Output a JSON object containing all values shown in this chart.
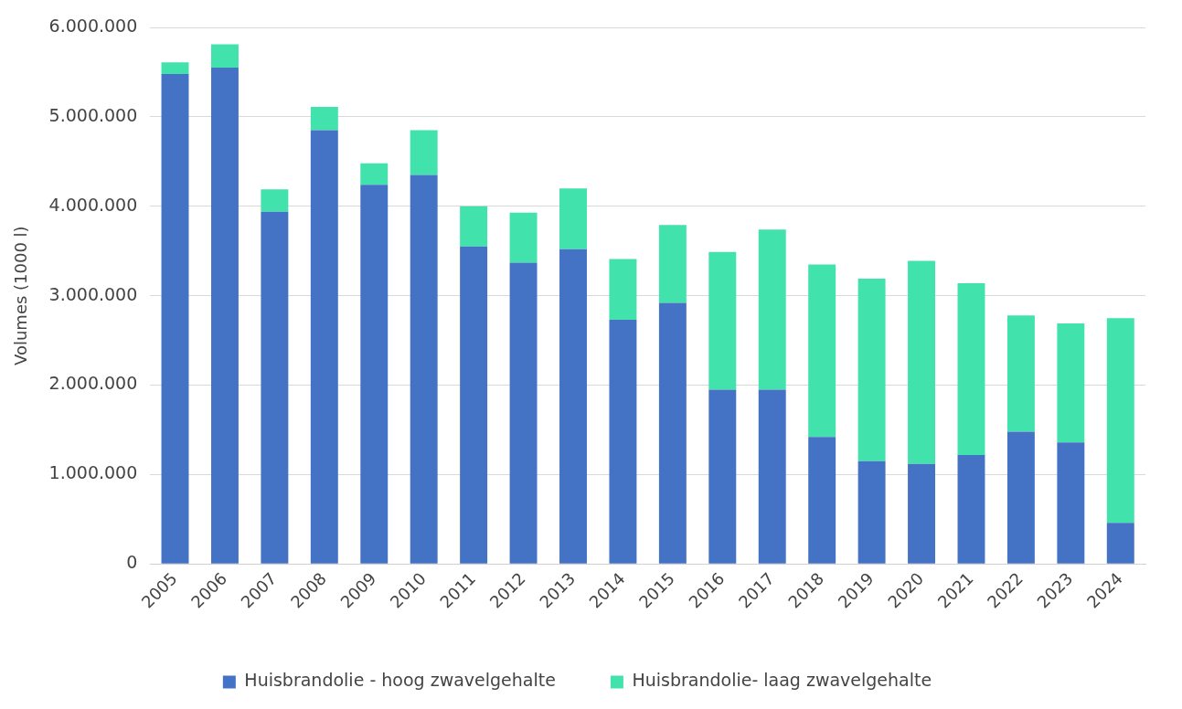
{
  "chart_data": {
    "type": "bar",
    "stacked": true,
    "ylabel": "Volumes (1000 l)",
    "categories": [
      "2005",
      "2006",
      "2007",
      "2008",
      "2009",
      "2010",
      "2011",
      "2012",
      "2013",
      "2014",
      "2015",
      "2016",
      "2017",
      "2018",
      "2019",
      "2020",
      "2021",
      "2022",
      "2023",
      "2024"
    ],
    "series": [
      {
        "name": "Huisbrandolie - hoog zwavelgehalte",
        "color": "#4472c4",
        "values": [
          5480000,
          5550000,
          3940000,
          4850000,
          4240000,
          4350000,
          3550000,
          3370000,
          3520000,
          2730000,
          2920000,
          1950000,
          1950000,
          1420000,
          1150000,
          1120000,
          1220000,
          1480000,
          1360000,
          460000
        ]
      },
      {
        "name": "Huisbrandolie- laag zwavelgehalte",
        "color": "#41e2ac",
        "values": [
          130000,
          260000,
          250000,
          260000,
          240000,
          500000,
          450000,
          560000,
          680000,
          680000,
          870000,
          1540000,
          1790000,
          1930000,
          2040000,
          2270000,
          1920000,
          1300000,
          1330000,
          2290000
        ]
      }
    ],
    "ylim": [
      0,
      6000000
    ],
    "yticks": [
      0,
      {
        "value": 1000000,
        "label": "1.000.000"
      },
      {
        "value": 2000000,
        "label": "2.000.000"
      },
      {
        "value": 3000000,
        "label": "3.000.000"
      },
      {
        "value": 4000000,
        "label": "4.000.000"
      },
      {
        "value": 5000000,
        "label": "5.000.000"
      },
      {
        "value": 6000000,
        "label": "6.000.000"
      }
    ],
    "grid": "y",
    "legend": "bottom"
  }
}
